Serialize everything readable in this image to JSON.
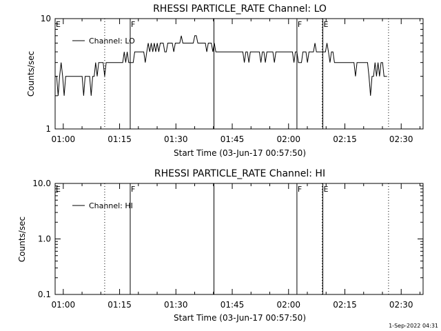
{
  "footer_timestamp": "1-Sep-2022 04:31",
  "chart_data": [
    {
      "type": "line",
      "title": "RHESSI PARTICLE_RATE Channel: LO",
      "xlabel": "Start Time (03-Jun-17 00:57:50)",
      "ylabel": "Counts/sec",
      "x_unit": "minutes after 00:57:50",
      "xlim": [
        0,
        98
      ],
      "ylim": [
        1,
        10
      ],
      "yscale": "log",
      "x_ticks": [
        {
          "v": 2.17,
          "label": "01:00"
        },
        {
          "v": 17.17,
          "label": "01:15"
        },
        {
          "v": 32.17,
          "label": "01:30"
        },
        {
          "v": 47.17,
          "label": "01:45"
        },
        {
          "v": 62.17,
          "label": "02:00"
        },
        {
          "v": 77.17,
          "label": "02:15"
        },
        {
          "v": 92.17,
          "label": "02:30"
        }
      ],
      "y_ticks": [
        {
          "v": 1,
          "label": "1"
        },
        {
          "v": 10,
          "label": "10"
        }
      ],
      "legend": {
        "label": "Channel: LO",
        "position": "top-left"
      },
      "markers": [
        {
          "x": 0,
          "label": "E",
          "style": "none"
        },
        {
          "x": 13.2,
          "label": "",
          "style": "dotted"
        },
        {
          "x": 20.0,
          "label": "F",
          "style": "solid"
        },
        {
          "x": 42.3,
          "label": "",
          "style": "solid"
        },
        {
          "x": 64.4,
          "label": "F",
          "style": "solid"
        },
        {
          "x": 71.1,
          "label": "",
          "style": "dotted"
        },
        {
          "x": 71.3,
          "label": "E",
          "style": "solid"
        },
        {
          "x": 88.8,
          "label": "",
          "style": "dotted"
        },
        {
          "x": 98.0,
          "label": "",
          "style": "dotted"
        }
      ],
      "series": [
        {
          "name": "Channel: LO",
          "x": [
            0.0,
            0.4,
            0.8,
            1.2,
            1.6,
            2.0,
            2.4,
            2.8,
            3.2,
            3.6,
            4.0,
            4.4,
            4.8,
            5.2,
            5.6,
            6.0,
            6.4,
            6.8,
            7.2,
            7.6,
            8.0,
            8.4,
            8.8,
            9.2,
            9.6,
            10.0,
            10.4,
            10.8,
            11.2,
            11.6,
            12.0,
            12.4,
            12.8,
            13.2,
            13.6,
            14.0,
            14.4,
            14.8,
            15.2,
            15.6,
            16.0,
            16.4,
            16.8,
            17.2,
            17.6,
            18.0,
            18.4,
            18.8,
            19.2,
            19.6,
            20.0,
            20.4,
            20.8,
            21.2,
            21.6,
            22.0,
            22.4,
            22.8,
            23.2,
            23.6,
            24.0,
            24.4,
            24.8,
            25.2,
            25.6,
            26.0,
            26.4,
            26.8,
            27.2,
            27.6,
            28.0,
            28.4,
            28.8,
            29.2,
            29.6,
            30.0,
            30.4,
            30.8,
            31.2,
            31.6,
            32.0,
            32.4,
            32.8,
            33.2,
            33.6,
            34.0,
            34.4,
            34.8,
            35.2,
            35.6,
            36.0,
            36.4,
            36.8,
            37.2,
            37.6,
            38.0,
            38.4,
            38.8,
            39.2,
            39.6,
            40.0,
            40.4,
            40.8,
            41.2,
            41.6,
            42.0,
            42.4,
            42.8,
            43.2,
            43.6,
            44.0,
            44.4,
            44.8,
            45.2,
            45.6,
            46.0,
            46.4,
            46.8,
            47.2,
            47.6,
            48.0,
            48.4,
            48.8,
            49.2,
            49.6,
            50.0,
            50.4,
            50.8,
            51.2,
            51.6,
            52.0,
            52.4,
            52.8,
            53.2,
            53.6,
            54.0,
            54.4,
            54.8,
            55.2,
            55.6,
            56.0,
            56.4,
            56.8,
            57.2,
            57.6,
            58.0,
            58.4,
            58.8,
            59.2,
            59.6,
            60.0,
            60.4,
            60.8,
            61.2,
            61.6,
            62.0,
            62.4,
            62.8,
            63.2,
            63.6,
            64.0,
            64.4,
            64.8,
            65.2,
            65.6,
            66.0,
            66.4,
            66.8,
            67.2,
            67.6,
            68.0,
            68.4,
            68.8,
            69.2,
            69.6,
            70.0,
            70.4,
            70.8,
            71.2,
            71.6,
            72.0,
            72.4,
            72.8,
            73.2,
            73.6,
            74.0,
            74.4,
            74.8,
            75.2,
            75.6,
            76.0,
            76.4,
            76.8,
            77.2,
            77.6,
            78.0,
            78.4,
            78.8,
            79.2,
            79.6,
            80.0,
            80.4,
            80.8,
            81.2,
            81.6,
            82.0,
            82.4,
            82.8,
            83.2,
            83.6,
            84.0,
            84.4,
            84.8,
            85.2,
            85.6,
            86.0,
            86.4,
            86.8,
            87.2,
            87.6,
            88.0,
            88.4
          ],
          "y": [
            3,
            3,
            2,
            3,
            4,
            3,
            2,
            3,
            3,
            3,
            3,
            3,
            3,
            3,
            3,
            3,
            3,
            3,
            3,
            2,
            3,
            3,
            3,
            3,
            2,
            3,
            3,
            4,
            3,
            4,
            4,
            4,
            4,
            3,
            4,
            4,
            4,
            4,
            4,
            4,
            4,
            4,
            4,
            4,
            4,
            4,
            5,
            4,
            5,
            4,
            4,
            4,
            4,
            5,
            5,
            5,
            5,
            5,
            5,
            5,
            4,
            5,
            6,
            5,
            6,
            5,
            6,
            5,
            6,
            5,
            6,
            6,
            6,
            5,
            5,
            6,
            6,
            6,
            6,
            5,
            6,
            6,
            6,
            6,
            7,
            6,
            6,
            6,
            6,
            6,
            6,
            6,
            6,
            7,
            7,
            6,
            6,
            6,
            6,
            6,
            6,
            5,
            6,
            6,
            6,
            5,
            6,
            5,
            5,
            5,
            5,
            5,
            5,
            5,
            5,
            5,
            5,
            5,
            5,
            5,
            5,
            5,
            5,
            5,
            5,
            5,
            4,
            5,
            5,
            4,
            5,
            5,
            5,
            5,
            5,
            5,
            5,
            4,
            5,
            5,
            4,
            5,
            5,
            5,
            5,
            5,
            4,
            5,
            5,
            5,
            5,
            5,
            5,
            5,
            5,
            5,
            5,
            5,
            5,
            4,
            5,
            5,
            4,
            4,
            4,
            5,
            5,
            5,
            4,
            5,
            5,
            5,
            5,
            6,
            5,
            5,
            5,
            5,
            5,
            5,
            5,
            6,
            5,
            4,
            5,
            5,
            4,
            4,
            4,
            4,
            4,
            4,
            4,
            4,
            4,
            4,
            4,
            4,
            4,
            4,
            3,
            4,
            4,
            4,
            4,
            4,
            4,
            4,
            4,
            3,
            2,
            3,
            3,
            4,
            3,
            4,
            3,
            4,
            4,
            3,
            3,
            3
          ]
        }
      ]
    },
    {
      "type": "line",
      "title": "RHESSI PARTICLE_RATE Channel: HI",
      "xlabel": "Start Time (03-Jun-17 00:57:50)",
      "ylabel": "Counts/sec",
      "x_unit": "minutes after 00:57:50",
      "xlim": [
        0,
        98
      ],
      "ylim": [
        0.1,
        10.0
      ],
      "yscale": "log",
      "x_ticks": [
        {
          "v": 2.17,
          "label": "01:00"
        },
        {
          "v": 17.17,
          "label": "01:15"
        },
        {
          "v": 32.17,
          "label": "01:30"
        },
        {
          "v": 47.17,
          "label": "01:45"
        },
        {
          "v": 62.17,
          "label": "02:00"
        },
        {
          "v": 77.17,
          "label": "02:15"
        },
        {
          "v": 92.17,
          "label": "02:30"
        }
      ],
      "y_ticks": [
        {
          "v": 0.1,
          "label": "0.1"
        },
        {
          "v": 1.0,
          "label": "1.0"
        },
        {
          "v": 10.0,
          "label": "10.0"
        }
      ],
      "legend": {
        "label": "Channel: HI",
        "position": "top-left"
      },
      "markers": [
        {
          "x": 0,
          "label": "E",
          "style": "none"
        },
        {
          "x": 13.2,
          "label": "",
          "style": "dotted"
        },
        {
          "x": 20.0,
          "label": "F",
          "style": "solid"
        },
        {
          "x": 42.3,
          "label": "",
          "style": "solid"
        },
        {
          "x": 64.4,
          "label": "F",
          "style": "solid"
        },
        {
          "x": 71.1,
          "label": "",
          "style": "dotted"
        },
        {
          "x": 71.3,
          "label": "E",
          "style": "solid"
        },
        {
          "x": 88.8,
          "label": "",
          "style": "dotted"
        },
        {
          "x": 98.0,
          "label": "",
          "style": "dotted"
        }
      ],
      "series": [
        {
          "name": "Channel: HI",
          "x": [],
          "y": []
        }
      ]
    }
  ]
}
